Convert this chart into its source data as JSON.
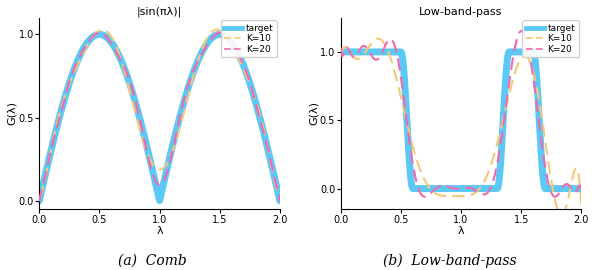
{
  "title_left": "|sin(πλ)|",
  "title_right": "Low-band-pass",
  "caption_left": "(a)  Comb",
  "caption_right": "(b)  Low-band-pass",
  "xlabel": "λ",
  "ylabel_left": "G(λ)",
  "ylabel_right": "G(λ)",
  "xlim": [
    0,
    2
  ],
  "ylim_left": [
    -0.05,
    1.1
  ],
  "ylim_right": [
    -0.15,
    1.25
  ],
  "color_target": "#5bc8f5",
  "color_k10": "#f5c878",
  "color_k20": "#f06aab",
  "lw_target": 5,
  "lw_k10": 1.5,
  "lw_k20": 1.5,
  "legend_labels": [
    "target",
    "K=10",
    "K=20"
  ],
  "n_points": 2000,
  "K10_comb": 10,
  "K20_comb": 20,
  "K10_lbp": 10,
  "K20_lbp": 20,
  "xticks": [
    0.0,
    0.5,
    1.0,
    1.5,
    2.0
  ],
  "yticks_left": [
    0.0,
    0.5,
    1.0
  ],
  "yticks_right": [
    0.0,
    0.5,
    1.0
  ]
}
